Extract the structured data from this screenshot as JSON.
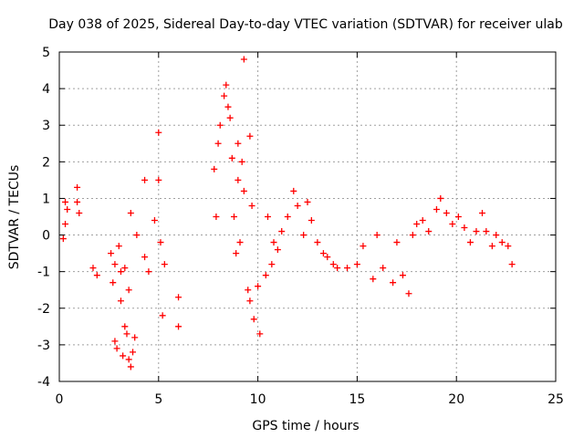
{
  "chart_data": {
    "type": "scatter",
    "title": "Day 038 of 2025, Sidereal Day-to-day VTEC variation (SDTVAR) for receiver ulab",
    "xlabel": "GPS time / hours",
    "ylabel": "SDTVAR / TECUs",
    "xlim": [
      0,
      25
    ],
    "ylim": [
      -4,
      5
    ],
    "xticks": [
      0,
      5,
      10,
      15,
      20,
      25
    ],
    "yticks": [
      -4,
      -3,
      -2,
      -1,
      0,
      1,
      2,
      3,
      4,
      5
    ],
    "grid": true,
    "marker": "+",
    "color": "#ff0000",
    "series": [
      {
        "name": "SDTVAR",
        "x": [
          0.2,
          0.3,
          0.3,
          0.4,
          0.9,
          0.9,
          1.0,
          1.7,
          1.9,
          2.6,
          2.7,
          2.8,
          2.8,
          2.9,
          3.0,
          3.1,
          3.1,
          3.2,
          3.3,
          3.3,
          3.4,
          3.5,
          3.5,
          3.6,
          3.6,
          3.7,
          3.8,
          3.9,
          4.3,
          4.3,
          4.5,
          4.8,
          5.0,
          5.0,
          5.1,
          5.2,
          5.3,
          6.0,
          6.0,
          7.8,
          7.9,
          8.0,
          8.1,
          8.3,
          8.4,
          8.5,
          8.6,
          8.7,
          8.8,
          8.9,
          9.0,
          9.0,
          9.1,
          9.2,
          9.3,
          9.3,
          9.5,
          9.6,
          9.6,
          9.7,
          9.8,
          10.0,
          10.1,
          10.4,
          10.5,
          10.7,
          10.8,
          11.0,
          11.2,
          11.5,
          11.8,
          12.0,
          12.3,
          12.5,
          12.7,
          13.0,
          13.3,
          13.5,
          13.8,
          14.0,
          14.5,
          15.0,
          15.3,
          15.8,
          16.0,
          16.3,
          16.8,
          17.0,
          17.3,
          17.6,
          17.8,
          18.0,
          18.3,
          18.6,
          19.0,
          19.2,
          19.5,
          19.8,
          20.1,
          20.4,
          20.7,
          21.0,
          21.3,
          21.5,
          21.8,
          22.0,
          22.3,
          22.6,
          22.8
        ],
        "y": [
          -0.1,
          0.9,
          0.3,
          0.7,
          1.3,
          0.9,
          0.6,
          -0.9,
          -1.1,
          -0.5,
          -1.3,
          -0.8,
          -2.9,
          -3.1,
          -0.3,
          -1.0,
          -1.8,
          -3.3,
          -2.5,
          -0.9,
          -2.7,
          -3.4,
          -1.5,
          0.6,
          -3.6,
          -3.2,
          -2.8,
          0.0,
          1.5,
          -0.6,
          -1.0,
          0.4,
          2.8,
          1.5,
          -0.2,
          -2.2,
          -0.8,
          -1.7,
          -2.5,
          1.8,
          0.5,
          2.5,
          3.0,
          3.8,
          4.1,
          3.5,
          3.2,
          2.1,
          0.5,
          -0.5,
          2.5,
          1.5,
          -0.2,
          2.0,
          4.8,
          1.2,
          -1.5,
          2.7,
          -1.8,
          0.8,
          -2.3,
          -1.4,
          -2.7,
          -1.1,
          0.5,
          -0.8,
          -0.2,
          -0.4,
          0.1,
          0.5,
          1.2,
          0.8,
          0.0,
          0.9,
          0.4,
          -0.2,
          -0.5,
          -0.6,
          -0.8,
          -0.9,
          -0.9,
          -0.8,
          -0.3,
          -1.2,
          0.0,
          -0.9,
          -1.3,
          -0.2,
          -1.1,
          -1.6,
          0.0,
          0.3,
          0.4,
          0.1,
          0.7,
          1.0,
          0.6,
          0.3,
          0.5,
          0.2,
          -0.2,
          0.1,
          0.6,
          0.1,
          -0.3,
          0.0,
          -0.2,
          -0.3,
          -0.8
        ]
      }
    ]
  }
}
